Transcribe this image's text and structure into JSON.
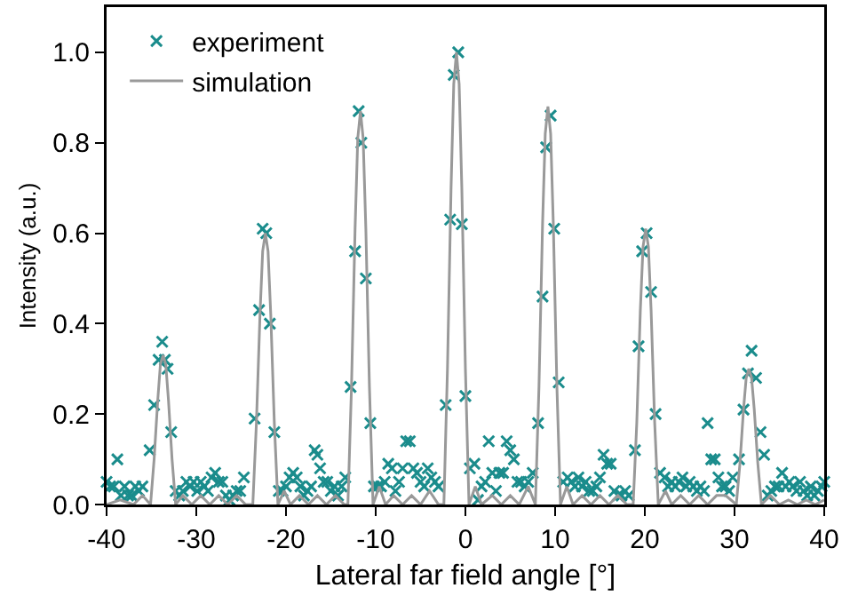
{
  "chart_data": {
    "type": "scatter",
    "xlabel": "Lateral far field angle [°]",
    "ylabel": "Intensity (a.u.)",
    "xlim": [
      -40,
      40
    ],
    "xticks": [
      -40,
      -30,
      -20,
      -10,
      0,
      10,
      20,
      30,
      40
    ],
    "ylim": [
      0,
      1.1
    ],
    "yticks": [
      {
        "value": 0,
        "label": "0.0"
      },
      {
        "value": 0.2,
        "label": "0.2"
      },
      {
        "value": 0.4,
        "label": "0.4"
      },
      {
        "value": 0.6,
        "label": "0.6"
      },
      {
        "value": 0.8,
        "label": "0.8"
      },
      {
        "value": 1,
        "label": "1.0"
      }
    ],
    "grid": false,
    "legend": "top left",
    "series": [
      {
        "name": "experiment",
        "type": "scatter",
        "marker": "cross",
        "color": "#1a8c8c",
        "x": [
          -40,
          -39.6,
          -39.2,
          -38.8,
          -38.4,
          -38,
          -37.6,
          -37.2,
          -36.8,
          -36.4,
          -36,
          -35.2,
          -34.7,
          -34.2,
          -33.8,
          -33.5,
          -33.2,
          -32.8,
          -32.3,
          -31.9,
          -31.5,
          -31.1,
          -30.7,
          -30.3,
          -29.9,
          -29.5,
          -29.1,
          -28.7,
          -28.3,
          -27.9,
          -27.5,
          -27.1,
          -26.7,
          -26.3,
          -25.9,
          -25.5,
          -25.1,
          -24.7,
          -23.5,
          -23,
          -22.6,
          -22.2,
          -21.8,
          -21.3,
          -20.8,
          -20.4,
          -20,
          -19.6,
          -19.2,
          -18.8,
          -18.4,
          -18,
          -17.6,
          -17.2,
          -16.8,
          -16.5,
          -16.2,
          -15.8,
          -15.4,
          -15,
          -14.6,
          -14.2,
          -13.8,
          -13.4,
          -12.8,
          -12.3,
          -11.9,
          -11.6,
          -11.1,
          -10.6,
          -10.2,
          -9.8,
          -9.4,
          -9,
          -8.6,
          -8.2,
          -7.8,
          -7.4,
          -7,
          -6.6,
          -6.2,
          -5.8,
          -5.4,
          -5,
          -4.6,
          -4.2,
          -3.8,
          -3.4,
          -3,
          -2.2,
          -1.7,
          -1.3,
          -0.8,
          -0.4,
          0,
          0.5,
          1,
          1.4,
          1.8,
          2.2,
          2.6,
          3,
          3.4,
          3.8,
          4.2,
          4.6,
          5,
          5.4,
          5.8,
          6.2,
          6.6,
          7,
          7.5,
          8.1,
          8.6,
          9,
          9.5,
          9.9,
          10.4,
          10.9,
          11.4,
          11.8,
          12.2,
          12.6,
          13,
          13.4,
          13.8,
          14.2,
          14.6,
          15,
          15.4,
          15.8,
          16.2,
          16.6,
          17,
          17.4,
          17.8,
          18.2,
          18.9,
          19.3,
          19.7,
          20.2,
          20.7,
          21.2,
          21.7,
          22.2,
          22.6,
          23,
          23.4,
          23.8,
          24.2,
          24.6,
          25,
          25.4,
          25.8,
          26.2,
          26.6,
          27,
          27.4,
          27.8,
          28.2,
          28.6,
          29,
          29.4,
          29.8,
          30.5,
          31,
          31.5,
          31.9,
          32.4,
          32.9,
          33.3,
          33.7,
          34.1,
          34.5,
          34.9,
          35.3,
          35.7,
          36.1,
          36.5,
          36.9,
          37.3,
          37.7,
          38.1,
          38.5,
          38.9,
          39.3,
          39.7,
          40
        ],
        "values": [
          0.05,
          0.04,
          0.04,
          0.1,
          0.02,
          0.04,
          0.02,
          0.02,
          0.04,
          0.03,
          0.04,
          0.12,
          0.22,
          0.32,
          0.36,
          0.32,
          0.3,
          0.16,
          0.03,
          0.02,
          0.03,
          0.05,
          0.04,
          0.05,
          0.03,
          0.05,
          0.04,
          0.03,
          0.06,
          0.07,
          0.05,
          0.05,
          0.02,
          0.01,
          0.02,
          0.03,
          0.03,
          0.06,
          0.19,
          0.43,
          0.61,
          0.6,
          0.4,
          0.16,
          0.03,
          0.03,
          0.04,
          0.06,
          0.07,
          0.06,
          0.04,
          0.02,
          0.03,
          0.04,
          0.12,
          0.11,
          0.08,
          0.05,
          0.05,
          0.03,
          0.04,
          0.02,
          0.04,
          0.06,
          0.26,
          0.56,
          0.87,
          0.8,
          0.5,
          0.18,
          0.04,
          0.04,
          0.04,
          0.05,
          0.09,
          0.08,
          0.03,
          0.05,
          0.08,
          0.14,
          0.14,
          0.08,
          0.07,
          0.05,
          0.04,
          0.08,
          0.06,
          0.05,
          0.04,
          0.22,
          0.63,
          0.95,
          1.0,
          0.62,
          0.24,
          0.08,
          0.09,
          0.01,
          0.04,
          0.05,
          0.14,
          0.07,
          0.03,
          0.07,
          0.07,
          0.14,
          0.12,
          0.1,
          0.05,
          0.05,
          0.04,
          0.05,
          0.07,
          0.18,
          0.46,
          0.79,
          0.86,
          0.61,
          0.27,
          0.05,
          0.06,
          0.05,
          0.04,
          0.06,
          0.04,
          0.05,
          0.03,
          0.03,
          0.04,
          0.06,
          0.11,
          0.09,
          0.09,
          0.03,
          0.02,
          0.02,
          0.03,
          0.02,
          0.12,
          0.35,
          0.56,
          0.6,
          0.47,
          0.2,
          0.07,
          0.06,
          0.04,
          0.05,
          0.04,
          0.05,
          0.06,
          0.04,
          0.05,
          0.04,
          0.03,
          0.04,
          0.03,
          0.18,
          0.1,
          0.1,
          0.06,
          0.04,
          0.04,
          0.03,
          0.06,
          0.1,
          0.21,
          0.29,
          0.34,
          0.28,
          0.16,
          0.11,
          0.02,
          0.03,
          0.04,
          0.04,
          0.07,
          0.04,
          0.05,
          0.04,
          0.03,
          0.05,
          0.03,
          0.02,
          0.04,
          0.02,
          0.03,
          0.04,
          0.05
        ]
      },
      {
        "name": "simulation",
        "type": "line",
        "marker": "none",
        "line_style": "solid",
        "color": "#999999",
        "x": [
          -40,
          -38.5,
          -37,
          -36,
          -35.1,
          -34.7,
          -34.3,
          -34,
          -33.7,
          -33.4,
          -33.1,
          -32.7,
          -32.3,
          -31.5,
          -30.5,
          -29.5,
          -28.5,
          -27.5,
          -26.5,
          -25.5,
          -24.5,
          -23.7,
          -23.3,
          -22.9,
          -22.6,
          -22.3,
          -22,
          -21.7,
          -21.3,
          -20.9,
          -20.2,
          -19.5,
          -18.5,
          -17.5,
          -16.5,
          -15.5,
          -14.5,
          -13.5,
          -13.1,
          -12.7,
          -12.3,
          -12,
          -11.7,
          -11.4,
          -11.1,
          -10.7,
          -10.3,
          -9.6,
          -8.9,
          -8,
          -7,
          -6,
          -5,
          -4,
          -3,
          -2.4,
          -2,
          -1.6,
          -1.3,
          -1,
          -0.7,
          -0.4,
          0,
          0.4,
          1.1,
          1.8,
          3,
          4,
          5,
          6,
          7,
          7.8,
          8.2,
          8.6,
          8.9,
          9.2,
          9.5,
          9.8,
          10.2,
          10.6,
          11.3,
          12,
          13,
          14,
          15,
          16,
          17,
          18,
          18.7,
          19.1,
          19.5,
          19.8,
          20.1,
          20.4,
          20.7,
          21.1,
          21.5,
          22.3,
          23,
          24,
          25,
          26,
          27,
          28,
          29,
          30.2,
          30.6,
          31,
          31.3,
          31.6,
          31.9,
          32.2,
          32.6,
          33,
          34,
          35,
          36,
          37,
          38,
          39,
          40
        ],
        "values": [
          0,
          0.01,
          0,
          0.02,
          0,
          0.1,
          0.23,
          0.31,
          0.33,
          0.31,
          0.23,
          0.1,
          0,
          0.02,
          0,
          0.02,
          0,
          0.02,
          0,
          0.02,
          0,
          0,
          0.18,
          0.42,
          0.56,
          0.6,
          0.56,
          0.42,
          0.18,
          0,
          0.03,
          0,
          0.02,
          0,
          0.02,
          0,
          0.02,
          0,
          0,
          0.26,
          0.61,
          0.81,
          0.87,
          0.81,
          0.61,
          0.26,
          0,
          0.04,
          0,
          0.02,
          0,
          0.02,
          0,
          0.03,
          0,
          0,
          0.3,
          0.7,
          0.93,
          1.0,
          0.93,
          0.7,
          0.3,
          0,
          0.04,
          0,
          0.02,
          0,
          0.02,
          0,
          0.04,
          0,
          0.26,
          0.62,
          0.82,
          0.88,
          0.82,
          0.62,
          0.26,
          0,
          0.04,
          0,
          0.02,
          0,
          0.02,
          0,
          0.02,
          0,
          0,
          0.18,
          0.43,
          0.57,
          0.61,
          0.57,
          0.43,
          0.18,
          0,
          0.03,
          0,
          0.02,
          0,
          0.02,
          0,
          0.02,
          0.02,
          0,
          0.09,
          0.21,
          0.28,
          0.3,
          0.28,
          0.21,
          0.09,
          0,
          0.02,
          0,
          0.01,
          0,
          0.01,
          0,
          0.01
        ]
      }
    ]
  }
}
